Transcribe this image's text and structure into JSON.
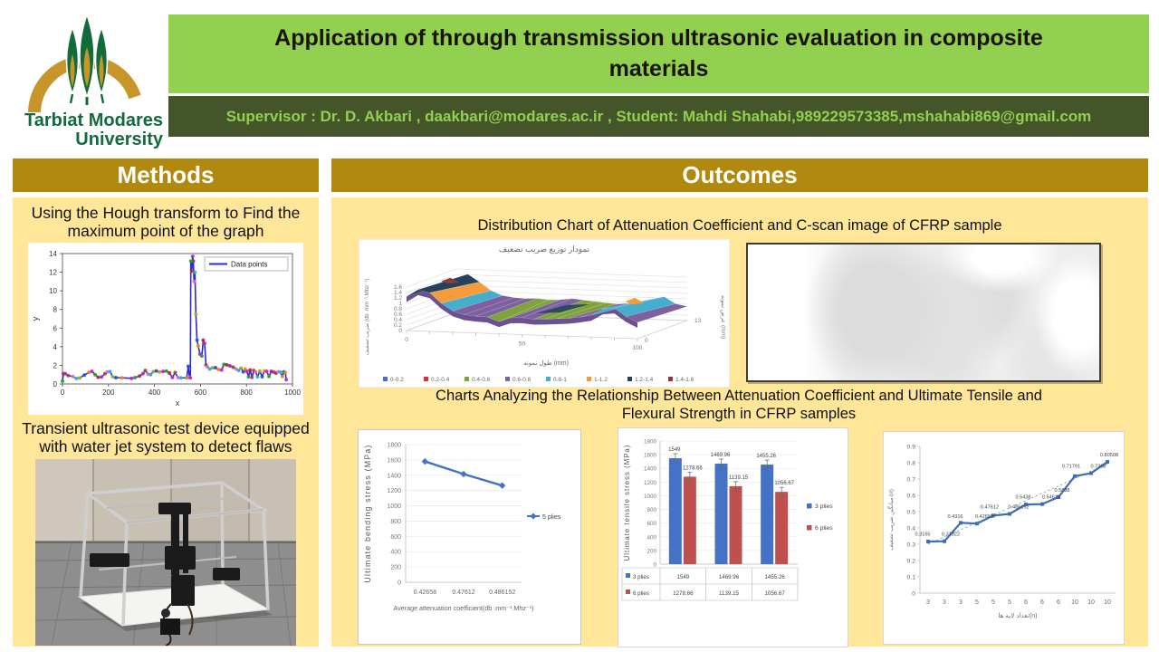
{
  "header": {
    "title": "Application of through transmission ultrasonic evaluation in composite materials",
    "supervisor_line": "Supervisor : Dr. D. Akbari , daakbari@modares.ac.ir , Student: Mahdi Shahabi,989229573385,mshahabi869@gmail.com",
    "logo_line1": "Tarbiat Modares",
    "logo_line2": "University"
  },
  "methods": {
    "header": "Methods",
    "caption1": "Using the Hough transform to Find the maximum point of the graph",
    "caption2": "Transient ultrasonic test device equipped with water jet system to detect flaws"
  },
  "outcomes": {
    "header": "Outcomes",
    "caption1": "Distribution Chart of  Attenuation Coefficient and C-scan image of CFRP sample",
    "caption2": "Charts Analyzing the Relationship Between Attenuation Coefficient and Ultimate Tensile and Flexural Strength in CFRP samples"
  },
  "colors": {
    "green_light": "#92D050",
    "green_dark": "#44552A",
    "gold_header": "#B1890E",
    "panel_yellow": "#FFE699",
    "excel_blue": "#4472C4",
    "excel_red": "#C0504D"
  },
  "chart_data": [
    {
      "id": "hough",
      "type": "line",
      "legend": "Data points",
      "xlabel": "x",
      "ylabel": "y",
      "xlim": [
        0,
        1000
      ],
      "ylim": [
        0,
        14
      ],
      "x_ticks": [
        0,
        200,
        400,
        600,
        800,
        1000
      ],
      "y_ticks": [
        0,
        2,
        4,
        6,
        8,
        10,
        12,
        14
      ],
      "line_color": "#2B2BD5",
      "marker_palette": [
        "#22aa22",
        "#cc2222",
        "#9933cc",
        "#885522",
        "#ee66cc",
        "#22bbcc",
        "#aaaa22",
        "#2255cc",
        "#ff8800",
        "#cc22cc"
      ],
      "points": [
        [
          0,
          0.3
        ],
        [
          4,
          1.1
        ],
        [
          12,
          1.1
        ],
        [
          25,
          0.9
        ],
        [
          45,
          0.8
        ],
        [
          60,
          0.6
        ],
        [
          75,
          0.65
        ],
        [
          95,
          0.95
        ],
        [
          115,
          1.25
        ],
        [
          128,
          1.35
        ],
        [
          142,
          1.0
        ],
        [
          155,
          0.72
        ],
        [
          170,
          0.75
        ],
        [
          185,
          1.1
        ],
        [
          195,
          1.3
        ],
        [
          207,
          1.32
        ],
        [
          218,
          0.78
        ],
        [
          232,
          0.68
        ],
        [
          258,
          0.66
        ],
        [
          300,
          0.6
        ],
        [
          315,
          0.68
        ],
        [
          335,
          0.85
        ],
        [
          350,
          1.1
        ],
        [
          360,
          1.45
        ],
        [
          372,
          1.05
        ],
        [
          383,
          1.0
        ],
        [
          395,
          1.32
        ],
        [
          408,
          1.4
        ],
        [
          422,
          1.28
        ],
        [
          438,
          1.35
        ],
        [
          452,
          1.38
        ],
        [
          465,
          1.18
        ],
        [
          478,
          0.7
        ],
        [
          490,
          1.22
        ],
        [
          502,
          0.68
        ],
        [
          515,
          0.66
        ],
        [
          540,
          0.65
        ],
        [
          547,
          1.9
        ],
        [
          552,
          0.7
        ],
        [
          556,
          0.66
        ],
        [
          558,
          13.2
        ],
        [
          562,
          12.1
        ],
        [
          566,
          13.7
        ],
        [
          569,
          13.2
        ],
        [
          572,
          11.0
        ],
        [
          576,
          12.0
        ],
        [
          580,
          7.5
        ],
        [
          585,
          4.7
        ],
        [
          590,
          4.1
        ],
        [
          598,
          3.2
        ],
        [
          606,
          3.0
        ],
        [
          612,
          4.7
        ],
        [
          618,
          4.35
        ],
        [
          624,
          2.05
        ],
        [
          630,
          1.85
        ],
        [
          640,
          1.6
        ],
        [
          652,
          1.72
        ],
        [
          665,
          1.75
        ],
        [
          678,
          1.55
        ],
        [
          692,
          1.5
        ],
        [
          702,
          2.1
        ],
        [
          714,
          2.05
        ],
        [
          728,
          1.95
        ],
        [
          742,
          1.8
        ],
        [
          755,
          1.6
        ],
        [
          766,
          1.45
        ],
        [
          776,
          1.7
        ],
        [
          786,
          1.3
        ],
        [
          794,
          1.6
        ],
        [
          802,
          1.35
        ],
        [
          809,
          0.75
        ],
        [
          816,
          1.5
        ],
        [
          824,
          0.7
        ],
        [
          832,
          1.45
        ],
        [
          840,
          1.3
        ],
        [
          848,
          0.75
        ],
        [
          858,
          1.38
        ],
        [
          868,
          0.78
        ],
        [
          878,
          1.4
        ],
        [
          888,
          1.35
        ],
        [
          898,
          0.8
        ],
        [
          908,
          1.35
        ],
        [
          918,
          1.28
        ],
        [
          928,
          1.15
        ],
        [
          938,
          1.3
        ],
        [
          948,
          1.28
        ],
        [
          956,
          0.8
        ],
        [
          963,
          1.3
        ],
        [
          969,
          1.22
        ],
        [
          973,
          0.45
        ]
      ]
    },
    {
      "id": "surface",
      "type": "surface",
      "title": "نمودار توزیع ضریب تضعیف",
      "value_axis_label": "ضریب تضعیف (db .mm⁻¹.Mhz⁻¹)",
      "xlabel": "طول نمونه (mm)",
      "depth_label": "عرض نمونه (mm)",
      "value_ticks": [
        0,
        0.2,
        0.4,
        0.6,
        0.8,
        1,
        1.2,
        1.4,
        1.6
      ],
      "x_ticks": [
        0,
        50,
        100
      ],
      "depth_ticks": [
        13,
        0
      ],
      "legend": [
        {
          "label": "0-0.2",
          "color": "#4472C4"
        },
        {
          "label": "0.2-0.4",
          "color": "#D2342F"
        },
        {
          "label": "0.4-0.6",
          "color": "#7FA23B"
        },
        {
          "label": "0.6-0.8",
          "color": "#7D60A0"
        },
        {
          "label": "0.8-1",
          "color": "#45AECD"
        },
        {
          "label": "1-1.2",
          "color": "#F59B3C"
        },
        {
          "label": "1.2-1.4",
          "color": "#24415F"
        },
        {
          "label": "1.4-1.6",
          "color": "#8C3A36"
        }
      ],
      "front_profile": [
        1.25,
        1.52,
        1.42,
        1.05,
        0.78,
        0.66,
        0.62,
        0.6,
        0.45,
        0.6,
        0.62,
        0.58,
        0.6,
        0.63,
        0.66,
        0.72,
        0.8,
        1.05,
        1.1,
        0.8,
        0.6
      ],
      "back_profile": [
        1.2,
        1.42,
        1.15,
        0.85,
        0.68,
        0.62,
        0.6,
        0.62,
        0.58,
        0.6,
        0.66,
        0.62,
        0.58,
        0.55,
        0.52,
        0.56,
        0.62,
        0.75,
        0.85,
        0.6,
        0.52
      ]
    },
    {
      "id": "bending",
      "type": "line",
      "series_name": "5 plies",
      "categories": [
        "0.42658",
        "0.47612",
        "0.486152"
      ],
      "values": [
        1580,
        1415,
        1265
      ],
      "ylim": [
        0,
        1800
      ],
      "y_ticks": [
        0,
        200,
        400,
        600,
        800,
        1000,
        1200,
        1400,
        1600,
        1800
      ],
      "ylabel": "Ultimate bending  stress (MPa)",
      "xlabel": "Average attenuation coefficient(db .mm⁻¹.Mhz⁻¹)",
      "color": "#4472C4"
    },
    {
      "id": "tensile",
      "type": "bar",
      "ylabel": "Ultimate tensile stress (MPa)",
      "ylim": [
        0,
        1800
      ],
      "y_ticks": [
        0,
        200,
        400,
        600,
        800,
        1000,
        1200,
        1400,
        1600,
        1800
      ],
      "series": [
        {
          "name": "3 plies",
          "color": "#4472C4",
          "values": [
            1549,
            1469.96,
            1455.26
          ],
          "labels": [
            "1549",
            "1469.96",
            "1455.26"
          ]
        },
        {
          "name": "6 plies",
          "color": "#C0504D",
          "values": [
            1278.66,
            1139.15,
            1056.67
          ],
          "labels": [
            "1278.66",
            "1139.15",
            "1056.67"
          ]
        }
      ],
      "error": 40
    },
    {
      "id": "alpha",
      "type": "scatter-line",
      "color": "#3E6FB5",
      "trend_color": "#8FAED8",
      "x_labels": [
        "3",
        "3",
        "3",
        "5",
        "5",
        "5",
        "6",
        "6",
        "6",
        "10",
        "10",
        "10"
      ],
      "values": [
        0.3165,
        0.31822,
        0.4316,
        0.42658,
        0.47612,
        0.486152,
        0.5438,
        0.54615,
        0.5888,
        0.71791,
        0.7358,
        0.80508
      ],
      "point_labels": [
        "0.3165",
        "0.31822",
        "0.4316",
        "0.42658",
        "0.47612",
        "0.486152",
        "0.5438",
        "0.54615",
        "0.5888",
        "0.71791",
        "0.7358",
        "0.80508"
      ],
      "ylim": [
        0,
        0.9
      ],
      "y_ticks": [
        "0",
        "0.1",
        "0.2",
        "0.3",
        "0.4",
        "0.5",
        "0.6",
        "0.7",
        "0.8",
        "0.9"
      ],
      "xlabel": "تعداد لایه ها(n)",
      "ylabel": "میانگین ضریب تضعیف (α)"
    }
  ]
}
